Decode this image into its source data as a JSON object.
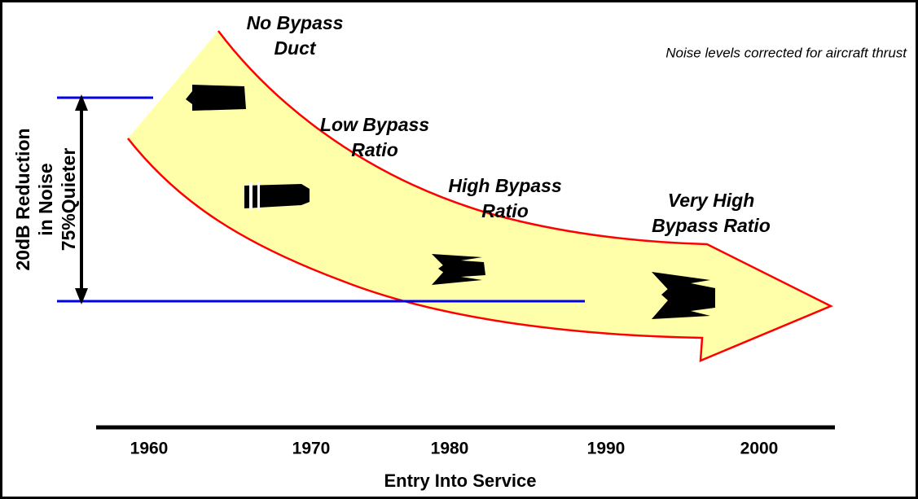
{
  "note": "Noise levels corrected for aircraft thrust",
  "engine_labels": [
    {
      "lines": [
        "No Bypass",
        "Duct"
      ]
    },
    {
      "lines": [
        "Low Bypass",
        "Ratio"
      ]
    },
    {
      "lines": [
        "High Bypass",
        "Ratio"
      ]
    },
    {
      "lines": [
        "Very High",
        "Bypass Ratio"
      ]
    }
  ],
  "reduction_label": {
    "lines": [
      "20dB Reduction",
      "in Noise",
      "75%Quieter"
    ]
  },
  "x_axis": {
    "ticks": [
      "1960",
      "1970",
      "1980",
      "1990",
      "2000"
    ],
    "title": "Entry Into Service"
  }
}
